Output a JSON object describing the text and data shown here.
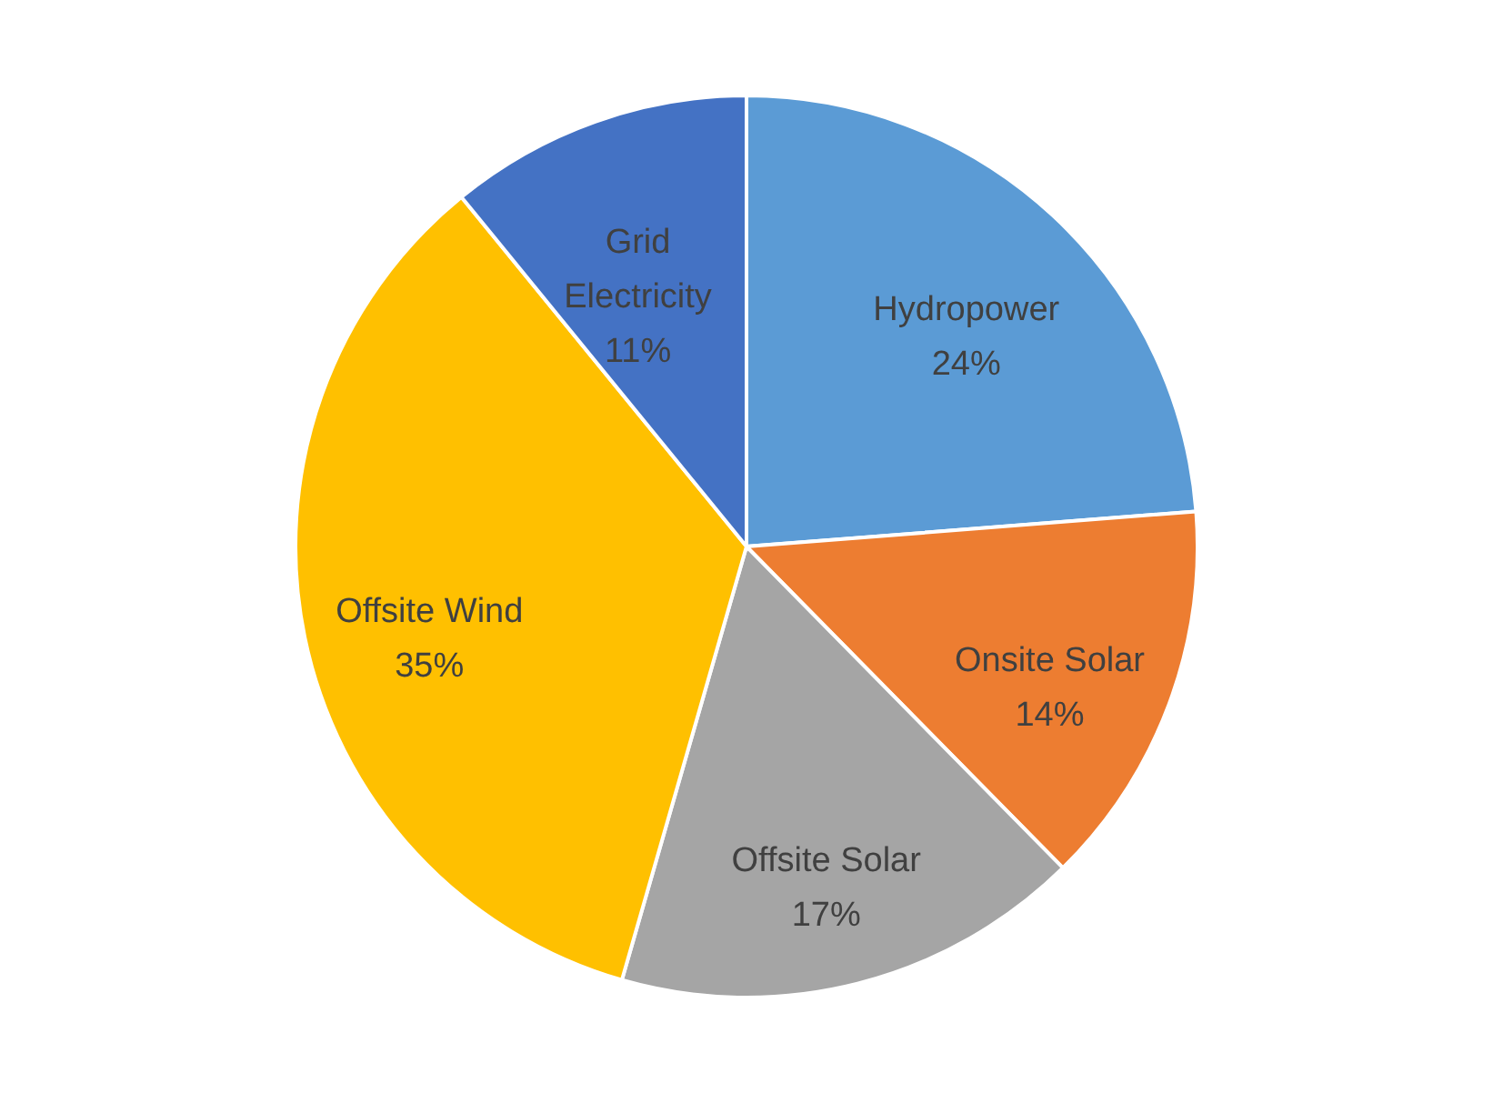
{
  "chart_data": {
    "type": "pie",
    "categories": [
      "Hydropower",
      "Onsite Solar",
      "Offsite Solar",
      "Offsite Wind",
      "Grid Electricity"
    ],
    "values": [
      24,
      14,
      17,
      35,
      11
    ],
    "value_labels": [
      "24%",
      "14%",
      "17%",
      "35%",
      "11%"
    ],
    "colors": [
      "#5b9bd5",
      "#ed7d31",
      "#a5a5a5",
      "#ffc000",
      "#4472c4"
    ]
  }
}
